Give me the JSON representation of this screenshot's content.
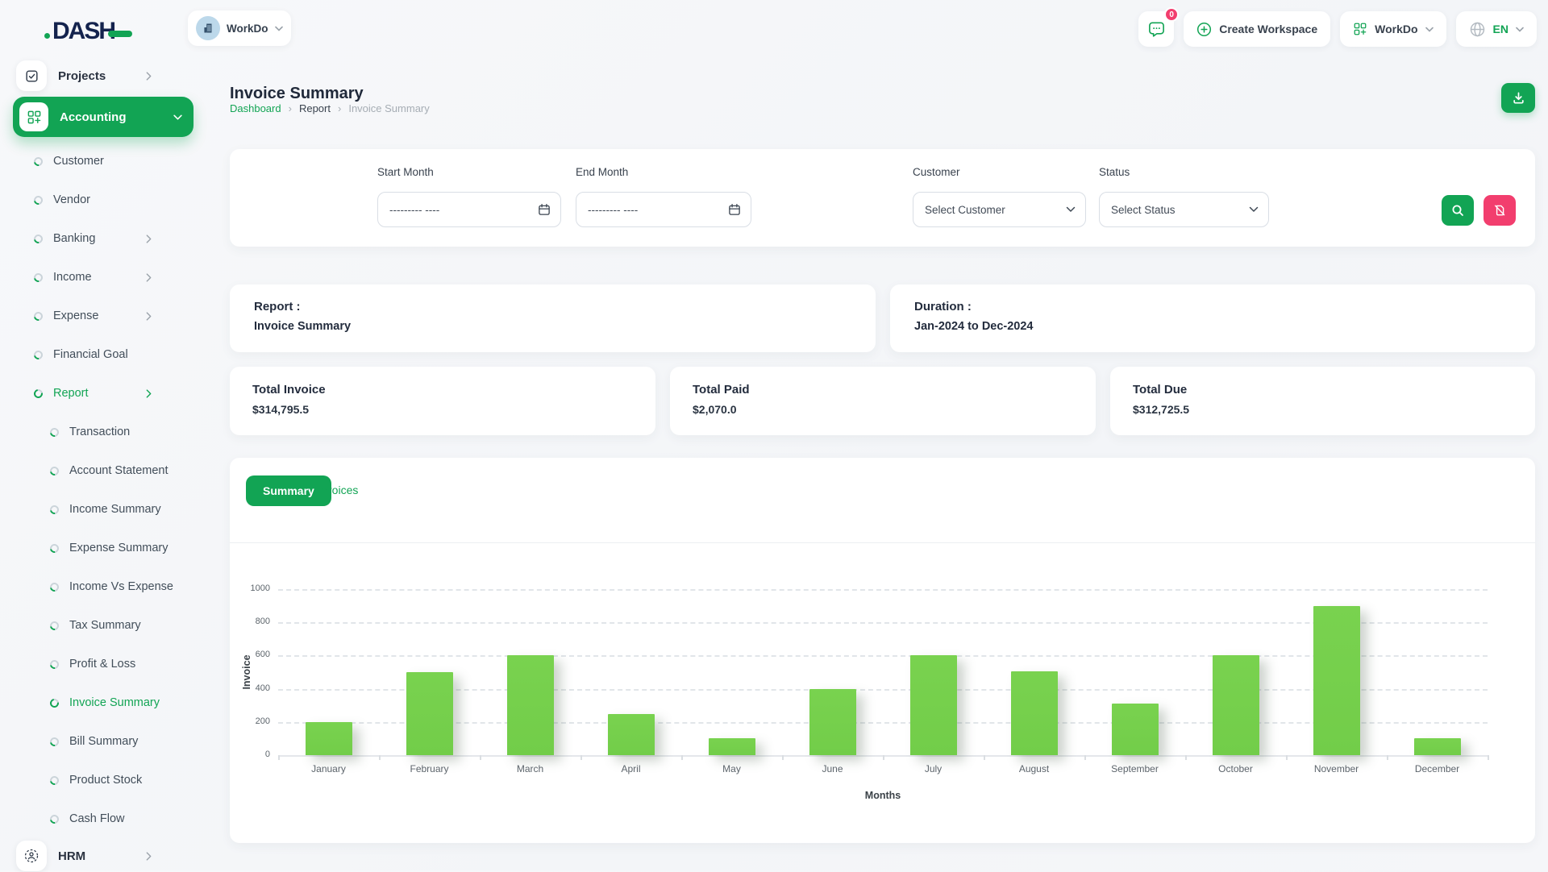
{
  "theme": {
    "primary_green": "#12A454",
    "bar_green": "#79D24F",
    "pink": "#F23E6E",
    "avatar_blue": "#BCD8EA",
    "logo_navy": "#14234D"
  },
  "brand": {
    "logo_text": "DASH"
  },
  "header": {
    "workspace": {
      "name": "WorkDo",
      "avatar_icon": "building-icon"
    },
    "chat_badge": "0",
    "create_workspace_label": "Create Workspace",
    "workspace_menu_label": "WorkDo",
    "language_label": "EN"
  },
  "sidebar": {
    "projects": {
      "label": "Projects",
      "icon": "checkbox-icon"
    },
    "accounting": {
      "label": "Accounting",
      "icon": "grid-plus-icon"
    },
    "accounting_children": [
      {
        "label": "Customer"
      },
      {
        "label": "Vendor"
      },
      {
        "label": "Banking",
        "has_children": true
      },
      {
        "label": "Income",
        "has_children": true
      },
      {
        "label": "Expense",
        "has_children": true
      },
      {
        "label": "Financial Goal"
      },
      {
        "label": "Report",
        "has_children": true,
        "active": true
      }
    ],
    "report_children": [
      {
        "label": "Transaction"
      },
      {
        "label": "Account Statement"
      },
      {
        "label": "Income Summary"
      },
      {
        "label": "Expense Summary"
      },
      {
        "label": "Income Vs Expense"
      },
      {
        "label": "Tax Summary"
      },
      {
        "label": "Profit & Loss"
      },
      {
        "label": "Invoice Summary",
        "active": true
      },
      {
        "label": "Bill Summary"
      },
      {
        "label": "Product Stock"
      },
      {
        "label": "Cash Flow"
      }
    ],
    "hrm": {
      "label": "HRM",
      "icon": "people-circle-icon"
    }
  },
  "page": {
    "title": "Invoice Summary",
    "breadcrumb": [
      "Dashboard",
      "Report",
      "Invoice Summary"
    ]
  },
  "filters": {
    "start_month_label": "Start Month",
    "end_month_label": "End Month",
    "date_placeholder": "--------- ----",
    "customer_label": "Customer",
    "customer_value": "Select Customer",
    "status_label": "Status",
    "status_value": "Select Status"
  },
  "info": {
    "report_label": "Report :",
    "report_value": "Invoice Summary",
    "duration_label": "Duration :",
    "duration_value": "Jan-2024 to Dec-2024"
  },
  "totals": [
    {
      "label": "Total Invoice",
      "value": "$314,795.5"
    },
    {
      "label": "Total Paid",
      "value": "$2,070.0"
    },
    {
      "label": "Total Due",
      "value": "$312,725.5"
    }
  ],
  "tabs": {
    "summary_label": "Summary",
    "invoices_label": "Invoices"
  },
  "chart_data": {
    "type": "bar",
    "categories": [
      "January",
      "February",
      "March",
      "April",
      "May",
      "June",
      "July",
      "August",
      "September",
      "October",
      "November",
      "December"
    ],
    "values": [
      200,
      500,
      600,
      250,
      100,
      400,
      600,
      505,
      310,
      600,
      900,
      100
    ],
    "title": "",
    "xlabel": "Months",
    "ylabel": "Invoice",
    "ylim": [
      0,
      1000
    ],
    "yticks": [
      0,
      200,
      400,
      600,
      800,
      1000
    ],
    "grid": "dashed-horizontal",
    "legend": "none",
    "bar_color": "#79D24F"
  }
}
